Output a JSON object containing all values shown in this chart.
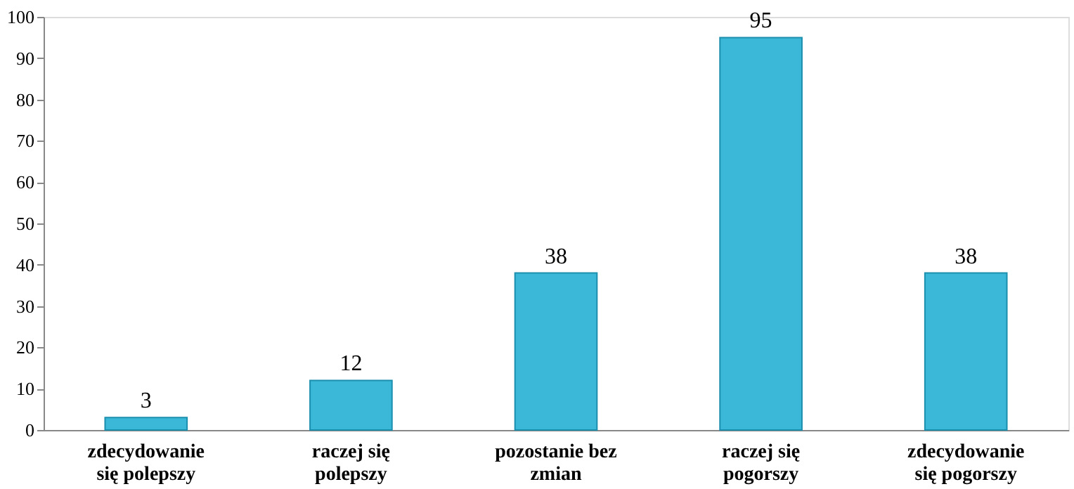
{
  "chart_data": {
    "type": "bar",
    "categories": [
      "zdecydowanie\nsię polepszy",
      "raczej się\npolepszy",
      "pozostanie bez\nzmian",
      "raczej się\npogorszy",
      "zdecydowanie\nsię pogorszy"
    ],
    "values": [
      3,
      12,
      38,
      95,
      38
    ],
    "color": "#3bb8d8",
    "ylim": [
      0,
      100
    ],
    "yticks": [
      0,
      10,
      20,
      30,
      40,
      50,
      60,
      70,
      80,
      90,
      100
    ],
    "grid": false,
    "data_labels": true
  }
}
